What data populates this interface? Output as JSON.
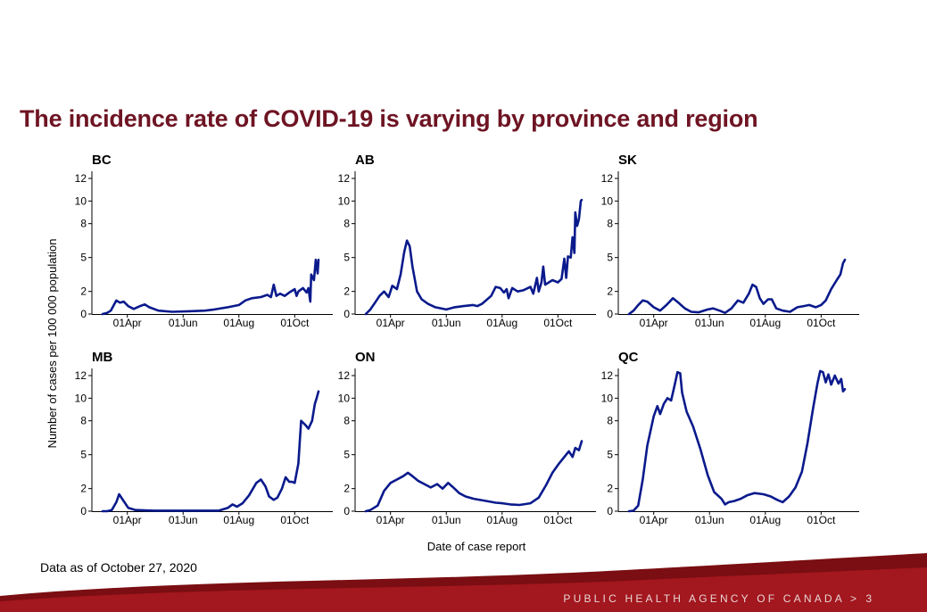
{
  "title": "The incidence rate of COVID-19 is varying by province and region",
  "footnote": "Data as of October 27, 2020",
  "footer": {
    "agency": "PUBLIC HEALTH AGENCY OF CANADA",
    "separator": ">",
    "page": "3"
  },
  "colors": {
    "title": "#6e1423",
    "line": "#0a1a8c",
    "footer_band": "#a3171e"
  },
  "chart_data": {
    "type": "line",
    "ylabel": "Number of cases per 100 000 population",
    "xlabel": "Date of case report",
    "x_ticks": [
      "01Apr",
      "01Jun",
      "01Aug",
      "01Oct"
    ],
    "x_range": [
      "2020-03-05",
      "2020-10-27"
    ],
    "grid": false,
    "panels": [
      {
        "name": "BC",
        "yticks": [
          "0",
          "2",
          "5",
          "8",
          "10",
          "12"
        ],
        "ylim": [
          0,
          12
        ],
        "points": [
          [
            "2020-03-05",
            0
          ],
          [
            "2020-03-10",
            0.1
          ],
          [
            "2020-03-14",
            0.3
          ],
          [
            "2020-03-18",
            0.9
          ],
          [
            "2020-03-20",
            1.2
          ],
          [
            "2020-03-24",
            1.0
          ],
          [
            "2020-03-28",
            1.1
          ],
          [
            "2020-04-02",
            0.7
          ],
          [
            "2020-04-08",
            0.45
          ],
          [
            "2020-04-15",
            0.7
          ],
          [
            "2020-04-20",
            0.85
          ],
          [
            "2020-04-25",
            0.6
          ],
          [
            "2020-05-05",
            0.3
          ],
          [
            "2020-05-20",
            0.2
          ],
          [
            "2020-06-10",
            0.25
          ],
          [
            "2020-06-25",
            0.3
          ],
          [
            "2020-07-05",
            0.4
          ],
          [
            "2020-07-20",
            0.6
          ],
          [
            "2020-08-01",
            0.8
          ],
          [
            "2020-08-08",
            1.2
          ],
          [
            "2020-08-15",
            1.4
          ],
          [
            "2020-08-25",
            1.5
          ],
          [
            "2020-09-01",
            1.7
          ],
          [
            "2020-09-05",
            1.5
          ],
          [
            "2020-09-08",
            2.6
          ],
          [
            "2020-09-11",
            1.6
          ],
          [
            "2020-09-15",
            1.8
          ],
          [
            "2020-09-20",
            1.6
          ],
          [
            "2020-09-25",
            1.9
          ],
          [
            "2020-10-01",
            2.2
          ],
          [
            "2020-10-03",
            1.6
          ],
          [
            "2020-10-05",
            2.0
          ],
          [
            "2020-10-10",
            2.3
          ],
          [
            "2020-10-14",
            1.9
          ],
          [
            "2020-10-16",
            2.3
          ],
          [
            "2020-10-18",
            1.1
          ],
          [
            "2020-10-19",
            3.5
          ],
          [
            "2020-10-22",
            3.0
          ],
          [
            "2020-10-24",
            4.8
          ],
          [
            "2020-10-26",
            3.6
          ],
          [
            "2020-10-27",
            4.8
          ]
        ]
      },
      {
        "name": "AB",
        "yticks": [
          "0",
          "2",
          "5",
          "8",
          "10",
          "12"
        ],
        "ylim": [
          0,
          12
        ],
        "points": [
          [
            "2020-03-05",
            0
          ],
          [
            "2020-03-10",
            0.4
          ],
          [
            "2020-03-15",
            1.0
          ],
          [
            "2020-03-20",
            1.6
          ],
          [
            "2020-03-25",
            2.0
          ],
          [
            "2020-03-30",
            1.5
          ],
          [
            "2020-04-03",
            2.5
          ],
          [
            "2020-04-08",
            2.2
          ],
          [
            "2020-04-12",
            3.5
          ],
          [
            "2020-04-16",
            5.5
          ],
          [
            "2020-04-19",
            6.5
          ],
          [
            "2020-04-22",
            6.0
          ],
          [
            "2020-04-25",
            4.2
          ],
          [
            "2020-04-30",
            2.0
          ],
          [
            "2020-05-05",
            1.3
          ],
          [
            "2020-05-12",
            0.9
          ],
          [
            "2020-05-20",
            0.6
          ],
          [
            "2020-06-01",
            0.4
          ],
          [
            "2020-06-10",
            0.6
          ],
          [
            "2020-06-20",
            0.7
          ],
          [
            "2020-06-30",
            0.8
          ],
          [
            "2020-07-05",
            0.7
          ],
          [
            "2020-07-10",
            0.9
          ],
          [
            "2020-07-20",
            1.6
          ],
          [
            "2020-07-25",
            2.4
          ],
          [
            "2020-07-30",
            2.3
          ],
          [
            "2020-08-03",
            1.9
          ],
          [
            "2020-08-06",
            2.2
          ],
          [
            "2020-08-08",
            1.4
          ],
          [
            "2020-08-12",
            2.3
          ],
          [
            "2020-08-18",
            2.0
          ],
          [
            "2020-08-24",
            2.1
          ],
          [
            "2020-09-01",
            2.4
          ],
          [
            "2020-09-04",
            1.8
          ],
          [
            "2020-09-08",
            3.2
          ],
          [
            "2020-09-10",
            2.0
          ],
          [
            "2020-09-13",
            2.8
          ],
          [
            "2020-09-15",
            4.2
          ],
          [
            "2020-09-17",
            2.6
          ],
          [
            "2020-09-25",
            3.0
          ],
          [
            "2020-10-01",
            2.8
          ],
          [
            "2020-10-05",
            3.1
          ],
          [
            "2020-10-08",
            4.9
          ],
          [
            "2020-10-10",
            3.2
          ],
          [
            "2020-10-12",
            5.1
          ],
          [
            "2020-10-15",
            5.0
          ],
          [
            "2020-10-17",
            6.8
          ],
          [
            "2020-10-19",
            5.4
          ],
          [
            "2020-10-20",
            9.0
          ],
          [
            "2020-10-22",
            7.8
          ],
          [
            "2020-10-24",
            8.4
          ],
          [
            "2020-10-26",
            10.0
          ],
          [
            "2020-10-27",
            10.1
          ]
        ]
      },
      {
        "name": "SK",
        "yticks": [
          "0",
          "2",
          "5",
          "8",
          "10",
          "12"
        ],
        "ylim": [
          0,
          12
        ],
        "points": [
          [
            "2020-03-05",
            0
          ],
          [
            "2020-03-10",
            0.3
          ],
          [
            "2020-03-15",
            0.8
          ],
          [
            "2020-03-20",
            1.2
          ],
          [
            "2020-03-25",
            1.1
          ],
          [
            "2020-04-01",
            0.6
          ],
          [
            "2020-04-08",
            0.3
          ],
          [
            "2020-04-15",
            0.8
          ],
          [
            "2020-04-22",
            1.4
          ],
          [
            "2020-04-28",
            1.0
          ],
          [
            "2020-05-05",
            0.5
          ],
          [
            "2020-05-12",
            0.2
          ],
          [
            "2020-05-20",
            0.15
          ],
          [
            "2020-05-30",
            0.4
          ],
          [
            "2020-06-05",
            0.5
          ],
          [
            "2020-06-12",
            0.3
          ],
          [
            "2020-06-18",
            0.1
          ],
          [
            "2020-06-25",
            0.5
          ],
          [
            "2020-07-02",
            1.2
          ],
          [
            "2020-07-08",
            1.0
          ],
          [
            "2020-07-14",
            1.8
          ],
          [
            "2020-07-18",
            2.6
          ],
          [
            "2020-07-22",
            2.4
          ],
          [
            "2020-07-26",
            1.4
          ],
          [
            "2020-07-30",
            0.9
          ],
          [
            "2020-08-04",
            1.3
          ],
          [
            "2020-08-08",
            1.3
          ],
          [
            "2020-08-13",
            0.5
          ],
          [
            "2020-08-20",
            0.3
          ],
          [
            "2020-08-28",
            0.2
          ],
          [
            "2020-09-05",
            0.6
          ],
          [
            "2020-09-12",
            0.7
          ],
          [
            "2020-09-18",
            0.8
          ],
          [
            "2020-09-25",
            0.6
          ],
          [
            "2020-10-01",
            0.8
          ],
          [
            "2020-10-06",
            1.2
          ],
          [
            "2020-10-12",
            2.2
          ],
          [
            "2020-10-18",
            3.0
          ],
          [
            "2020-10-22",
            3.5
          ],
          [
            "2020-10-25",
            4.5
          ],
          [
            "2020-10-27",
            4.8
          ]
        ]
      },
      {
        "name": "MB",
        "yticks": [
          "0",
          "2",
          "5",
          "8",
          "10",
          "12"
        ],
        "ylim": [
          0,
          12
        ],
        "points": [
          [
            "2020-03-05",
            0
          ],
          [
            "2020-03-10",
            0
          ],
          [
            "2020-03-15",
            0.1
          ],
          [
            "2020-03-20",
            0.8
          ],
          [
            "2020-03-23",
            1.5
          ],
          [
            "2020-03-28",
            0.9
          ],
          [
            "2020-04-02",
            0.3
          ],
          [
            "2020-04-10",
            0.1
          ],
          [
            "2020-04-30",
            0.05
          ],
          [
            "2020-06-15",
            0.05
          ],
          [
            "2020-07-10",
            0.05
          ],
          [
            "2020-07-20",
            0.3
          ],
          [
            "2020-07-25",
            0.6
          ],
          [
            "2020-07-30",
            0.4
          ],
          [
            "2020-08-05",
            0.7
          ],
          [
            "2020-08-12",
            1.4
          ],
          [
            "2020-08-20",
            2.5
          ],
          [
            "2020-08-25",
            2.8
          ],
          [
            "2020-08-30",
            2.2
          ],
          [
            "2020-09-03",
            1.3
          ],
          [
            "2020-09-08",
            1.0
          ],
          [
            "2020-09-12",
            1.2
          ],
          [
            "2020-09-17",
            2.0
          ],
          [
            "2020-09-21",
            3.0
          ],
          [
            "2020-09-25",
            2.6
          ],
          [
            "2020-09-28",
            2.6
          ],
          [
            "2020-10-01",
            2.5
          ],
          [
            "2020-10-05",
            4.2
          ],
          [
            "2020-10-08",
            8.0
          ],
          [
            "2020-10-13",
            7.6
          ],
          [
            "2020-10-16",
            7.3
          ],
          [
            "2020-10-20",
            8.0
          ],
          [
            "2020-10-23",
            9.5
          ],
          [
            "2020-10-25",
            10.0
          ],
          [
            "2020-10-27",
            10.6
          ]
        ]
      },
      {
        "name": "ON",
        "yticks": [
          "0",
          "2",
          "5",
          "8",
          "10",
          "12"
        ],
        "ylim": [
          0,
          12
        ],
        "points": [
          [
            "2020-03-05",
            0
          ],
          [
            "2020-03-10",
            0.1
          ],
          [
            "2020-03-18",
            0.5
          ],
          [
            "2020-03-25",
            1.8
          ],
          [
            "2020-04-01",
            2.5
          ],
          [
            "2020-04-08",
            2.8
          ],
          [
            "2020-04-15",
            3.1
          ],
          [
            "2020-04-20",
            3.4
          ],
          [
            "2020-04-25",
            3.1
          ],
          [
            "2020-05-01",
            2.7
          ],
          [
            "2020-05-08",
            2.4
          ],
          [
            "2020-05-15",
            2.1
          ],
          [
            "2020-05-22",
            2.4
          ],
          [
            "2020-05-28",
            2.0
          ],
          [
            "2020-06-03",
            2.5
          ],
          [
            "2020-06-10",
            2.0
          ],
          [
            "2020-06-15",
            1.6
          ],
          [
            "2020-06-22",
            1.3
          ],
          [
            "2020-07-01",
            1.1
          ],
          [
            "2020-07-15",
            0.9
          ],
          [
            "2020-07-25",
            0.75
          ],
          [
            "2020-08-01",
            0.7
          ],
          [
            "2020-08-10",
            0.6
          ],
          [
            "2020-08-20",
            0.55
          ],
          [
            "2020-09-01",
            0.7
          ],
          [
            "2020-09-10",
            1.2
          ],
          [
            "2020-09-18",
            2.3
          ],
          [
            "2020-09-25",
            3.4
          ],
          [
            "2020-10-02",
            4.2
          ],
          [
            "2020-10-08",
            4.8
          ],
          [
            "2020-10-13",
            5.3
          ],
          [
            "2020-10-17",
            4.8
          ],
          [
            "2020-10-20",
            5.6
          ],
          [
            "2020-10-24",
            5.4
          ],
          [
            "2020-10-27",
            6.2
          ]
        ]
      },
      {
        "name": "QC",
        "yticks": [
          "0",
          "2",
          "5",
          "8",
          "10",
          "12"
        ],
        "ylim": [
          0,
          12
        ],
        "points": [
          [
            "2020-03-05",
            0
          ],
          [
            "2020-03-10",
            0.05
          ],
          [
            "2020-03-15",
            0.5
          ],
          [
            "2020-03-20",
            2.8
          ],
          [
            "2020-03-25",
            5.8
          ],
          [
            "2020-04-01",
            8.4
          ],
          [
            "2020-04-05",
            9.3
          ],
          [
            "2020-04-08",
            8.6
          ],
          [
            "2020-04-12",
            9.5
          ],
          [
            "2020-04-16",
            10.0
          ],
          [
            "2020-04-20",
            9.8
          ],
          [
            "2020-04-24",
            11.2
          ],
          [
            "2020-04-27",
            12.3
          ],
          [
            "2020-04-30",
            12.2
          ],
          [
            "2020-05-02",
            10.5
          ],
          [
            "2020-05-07",
            8.8
          ],
          [
            "2020-05-14",
            7.5
          ],
          [
            "2020-05-22",
            5.5
          ],
          [
            "2020-05-30",
            3.2
          ],
          [
            "2020-06-06",
            1.7
          ],
          [
            "2020-06-14",
            1.1
          ],
          [
            "2020-06-18",
            0.6
          ],
          [
            "2020-06-22",
            0.8
          ],
          [
            "2020-06-28",
            0.9
          ],
          [
            "2020-07-05",
            1.1
          ],
          [
            "2020-07-12",
            1.4
          ],
          [
            "2020-07-20",
            1.6
          ],
          [
            "2020-07-30",
            1.5
          ],
          [
            "2020-08-07",
            1.3
          ],
          [
            "2020-08-14",
            1.0
          ],
          [
            "2020-08-20",
            0.8
          ],
          [
            "2020-08-27",
            1.3
          ],
          [
            "2020-09-03",
            2.1
          ],
          [
            "2020-09-10",
            3.5
          ],
          [
            "2020-09-16",
            6.0
          ],
          [
            "2020-09-22",
            9.0
          ],
          [
            "2020-09-27",
            11.3
          ],
          [
            "2020-09-30",
            12.4
          ],
          [
            "2020-10-03",
            12.3
          ],
          [
            "2020-10-06",
            11.4
          ],
          [
            "2020-10-09",
            12.1
          ],
          [
            "2020-10-12",
            11.2
          ],
          [
            "2020-10-16",
            12.0
          ],
          [
            "2020-10-20",
            11.3
          ],
          [
            "2020-10-23",
            11.7
          ],
          [
            "2020-10-25",
            10.6
          ],
          [
            "2020-10-27",
            10.8
          ]
        ]
      }
    ]
  }
}
